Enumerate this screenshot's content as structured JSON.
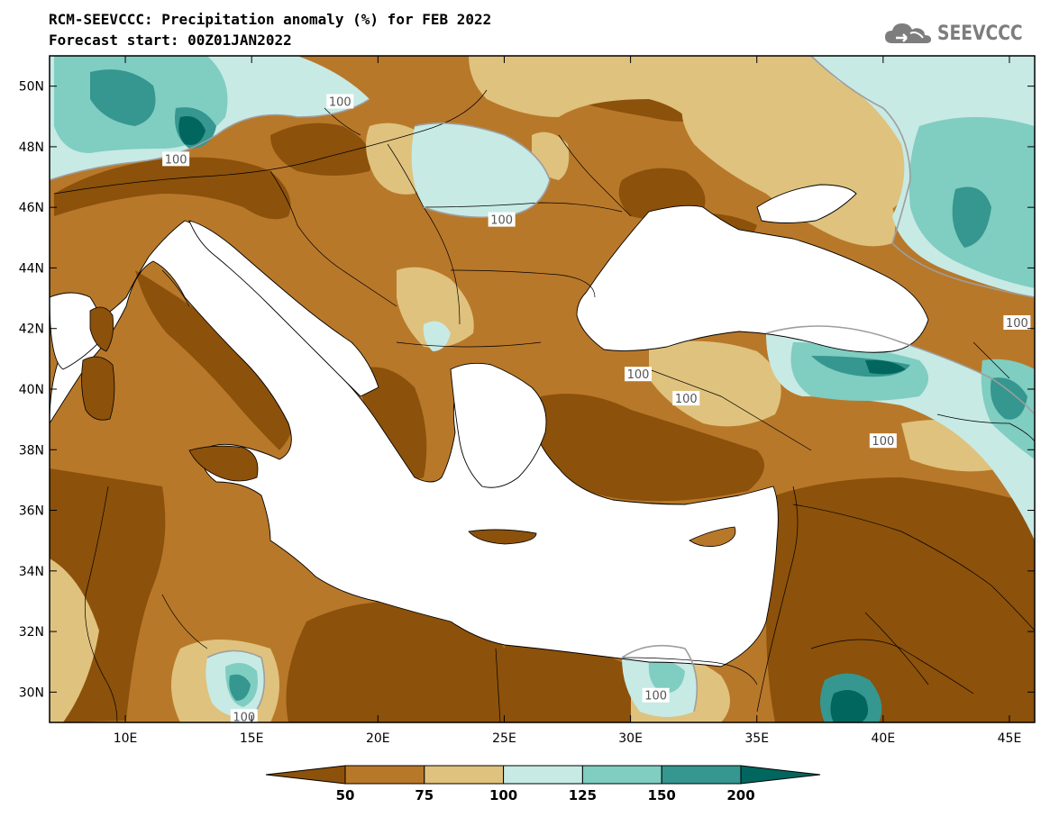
{
  "header": {
    "title_line1": "RCM-SEEVCCC: Precipitation anomaly (%) for FEB 2022",
    "title_line2": "Forecast start: 00Z01JAN2022"
  },
  "brand": {
    "name": "SEEVCCC",
    "icon": "cloud-icon",
    "color": "#7d7d7d"
  },
  "map": {
    "lon_range": [
      7,
      46
    ],
    "lat_range": [
      29,
      51
    ],
    "lon_ticks": [
      10,
      15,
      20,
      25,
      30,
      35,
      40,
      45
    ],
    "lon_tick_labels": [
      "10E",
      "15E",
      "20E",
      "25E",
      "30E",
      "35E",
      "40E",
      "45E"
    ],
    "lat_ticks": [
      30,
      32,
      34,
      36,
      38,
      40,
      42,
      44,
      46,
      48,
      50
    ],
    "lat_tick_labels": [
      "30N",
      "32N",
      "34N",
      "36N",
      "38N",
      "40N",
      "42N",
      "44N",
      "46N",
      "48N",
      "50N"
    ],
    "contour_label": "100",
    "contour_label_positions": [
      {
        "lon": 18.5,
        "lat": 49.5
      },
      {
        "lon": 12.0,
        "lat": 47.6
      },
      {
        "lon": 24.9,
        "lat": 45.6
      },
      {
        "lon": 45.3,
        "lat": 42.2
      },
      {
        "lon": 30.3,
        "lat": 40.5
      },
      {
        "lon": 32.2,
        "lat": 39.7
      },
      {
        "lon": 40.0,
        "lat": 38.3
      },
      {
        "lon": 31.0,
        "lat": 29.9
      },
      {
        "lon": 14.7,
        "lat": 29.2
      }
    ]
  },
  "colorbar": {
    "levels": [
      50,
      75,
      100,
      125,
      150,
      200
    ],
    "labels": [
      "50",
      "75",
      "100",
      "125",
      "150",
      "200"
    ],
    "colors": [
      "#8c510a",
      "#b8782a",
      "#dfc27d",
      "#c7eae5",
      "#80cdc1",
      "#35978f",
      "#01665e"
    ]
  }
}
